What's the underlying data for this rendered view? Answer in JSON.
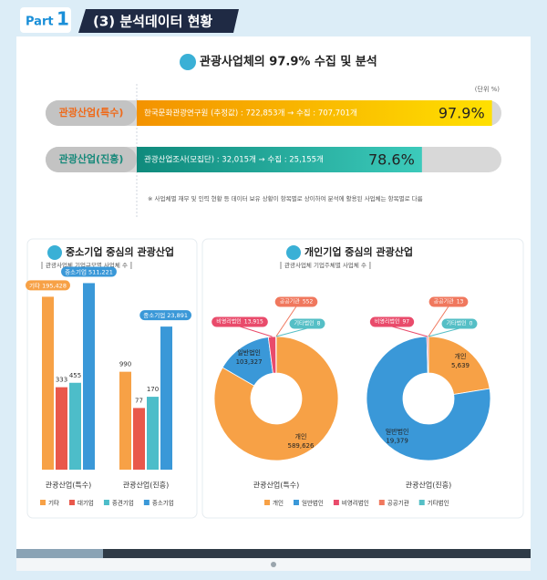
{
  "header": {
    "part": "Part",
    "part_number": "1",
    "title": "(3) 분석데이터 현황"
  },
  "chart_data": [
    {
      "type": "progress",
      "title": "관광사업체의 97.9% 수집 및 분석",
      "unit": "(단위 %)",
      "categories": [
        "관광산업(특수)",
        "관광산업(진흥)"
      ],
      "descriptions": [
        "한국문화관광연구원 (추정값) : 722,853개 → 수집 : 707,701개",
        "관광산업조사(모집단) : 32,015개 → 수집 : 25,155개"
      ],
      "values": [
        97.9,
        78.6
      ],
      "value_labels": [
        "97.9%",
        "78.6%"
      ],
      "colors": [
        [
          "#f39200",
          "#ffe000"
        ],
        [
          "#0f8a7c",
          "#3ccabb"
        ]
      ],
      "label_colors": [
        "#ef6a1a",
        "#17897a"
      ],
      "xlim": [
        0,
        100
      ],
      "note": "※ 사업체별 재무 및 인력 현황 등 데이터 보유 상황이 항목별로 상이하여 분석에 활용된 사업체는 항목별로 다름"
    },
    {
      "type": "bar",
      "title": "중소기업 중심의 관광산업",
      "subtitle": "관광사업체 기업규모별 사업체 수",
      "categories": [
        "관광산업(특수)",
        "관광산업(진흥)"
      ],
      "series": [
        {
          "name": "기타",
          "color": "#f7a146",
          "values": [
            195428,
            990
          ],
          "value_labels": [
            "기타 195,428",
            "990"
          ]
        },
        {
          "name": "대기업",
          "color": "#e9584b",
          "values": [
            333,
            77
          ]
        },
        {
          "name": "중견기업",
          "color": "#4dbdc9",
          "values": [
            455,
            170
          ]
        },
        {
          "name": "중소기업",
          "color": "#3a98d8",
          "values": [
            511221,
            23891
          ],
          "value_labels": [
            "중소기업 511,221",
            "중소기업 23,891"
          ]
        }
      ],
      "ylim": [
        1,
        1000000
      ],
      "log_scale": true
    },
    {
      "type": "donut",
      "title": "개인기업 중심의 관광산업",
      "subtitle": "관광사업체 기업주체별 사업체 수",
      "categories": [
        "관광산업(특수)",
        "관광산업(진흥)"
      ],
      "series": [
        {
          "name": "개인",
          "color": "#f7a146",
          "values": [
            589626,
            5639
          ],
          "value_labels": [
            "589,626",
            "5,639"
          ]
        },
        {
          "name": "일반법인",
          "color": "#3a98d8",
          "values": [
            103327,
            19379
          ],
          "value_labels": [
            "103,327",
            "19,379"
          ]
        },
        {
          "name": "비영리법인",
          "color": "#e94b6b",
          "values": [
            13915,
            97
          ],
          "value_labels": [
            "13,915",
            "97"
          ]
        },
        {
          "name": "공공기관",
          "color": "#f0785e",
          "values": [
            552,
            13
          ]
        },
        {
          "name": "기타법인",
          "color": "#55bfc6",
          "values": [
            8,
            0
          ]
        }
      ]
    }
  ]
}
